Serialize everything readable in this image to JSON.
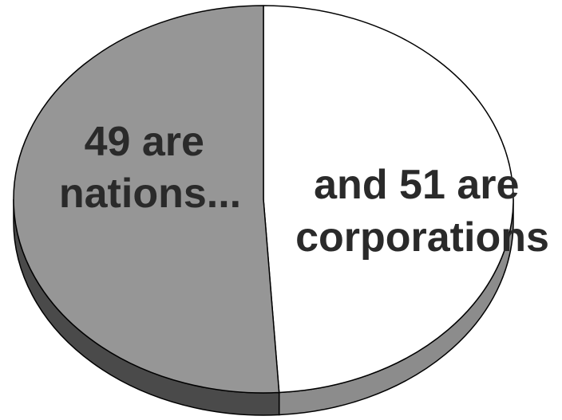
{
  "chart_data": {
    "type": "pie",
    "style": "3d",
    "title": "",
    "slices": [
      {
        "label_lines": [
          "49 are",
          "nations..."
        ],
        "value": 49,
        "color": "#ffffff",
        "side_color": "#8c8c8c"
      },
      {
        "label_lines": [
          "and 51 are",
          "corporations"
        ],
        "value": 51,
        "color": "#969696",
        "side_color": "#4a4a4a"
      }
    ],
    "legend": "none",
    "outline_color": "#000000"
  }
}
